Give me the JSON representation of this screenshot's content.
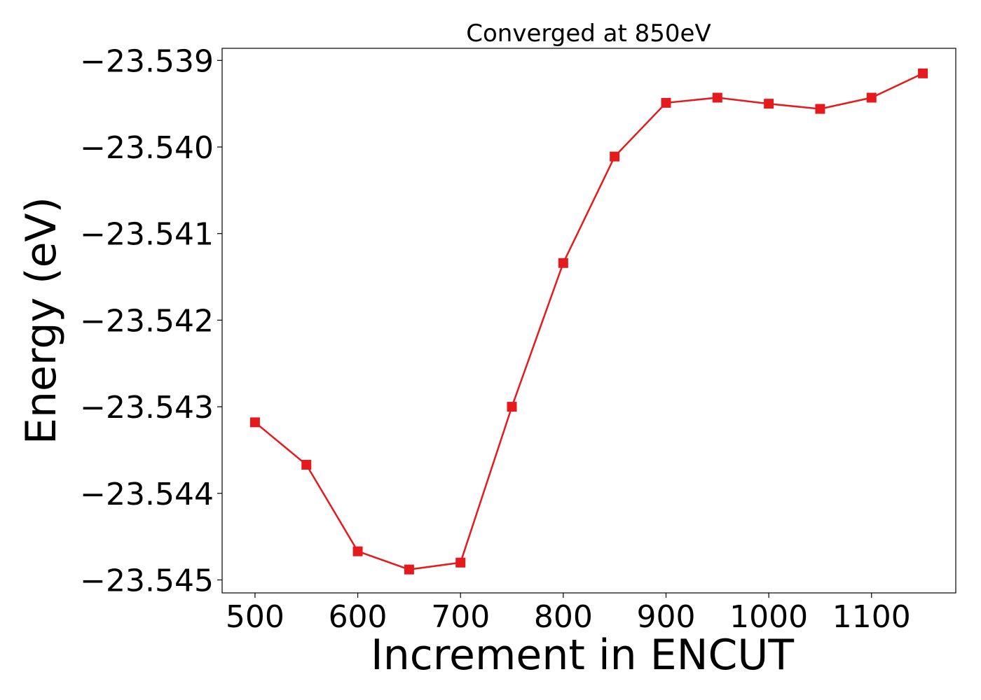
{
  "chart_data": {
    "type": "line",
    "title": "Converged at 850eV",
    "xlabel": "Increment in ENCUT",
    "ylabel": "Energy (eV)",
    "x_ticks": [
      500,
      600,
      700,
      800,
      900,
      1000,
      1100
    ],
    "y_ticks": [
      -23.539,
      -23.54,
      -23.541,
      -23.542,
      -23.543,
      -23.544,
      -23.545
    ],
    "y_tick_labels": [
      "−23.539",
      "−23.540",
      "−23.541",
      "−23.542",
      "−23.543",
      "−23.544",
      "−23.545"
    ],
    "xlim": [
      468,
      1182
    ],
    "ylim": [
      -23.54515,
      -23.53886
    ],
    "grid": false,
    "series": [
      {
        "color": "#e41a1c",
        "marker": "square",
        "x": [
          500,
          550,
          600,
          650,
          700,
          750,
          800,
          850,
          900,
          950,
          1000,
          1050,
          1100,
          1150
        ],
        "y": [
          -23.54318,
          -23.54367,
          -23.54467,
          -23.54488,
          -23.5448,
          -23.543,
          -23.54134,
          -23.54011,
          -23.53949,
          -23.53943,
          -23.5395,
          -23.53956,
          -23.53943,
          -23.53915
        ]
      }
    ]
  }
}
